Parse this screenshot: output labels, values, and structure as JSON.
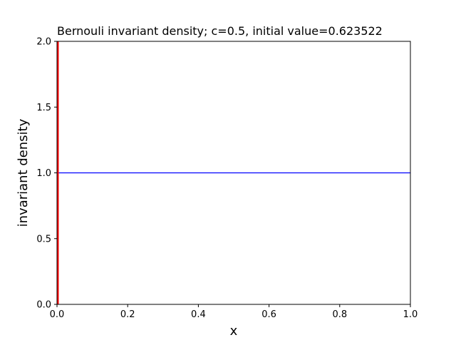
{
  "chart_data": {
    "type": "line",
    "title": "Bernouli invariant density; c=0.5, initial value=0.623522",
    "xlabel": "x",
    "ylabel": "invariant density",
    "xlim": [
      0.0,
      1.0
    ],
    "ylim": [
      0.0,
      2.0
    ],
    "x_ticks": [
      0.0,
      0.2,
      0.4,
      0.6,
      0.8,
      1.0
    ],
    "x_tick_labels": [
      "0.0",
      "0.2",
      "0.4",
      "0.6",
      "0.8",
      "1.0"
    ],
    "y_ticks": [
      0.0,
      0.5,
      1.0,
      1.5,
      2.0
    ],
    "y_tick_labels": [
      "0.0",
      "0.5",
      "1.0",
      "1.5",
      "2.0"
    ],
    "grid": false,
    "series": [
      {
        "color": "#0000ff",
        "style": "line",
        "x": [
          0.0,
          1.0
        ],
        "y": [
          1.0,
          1.0
        ]
      },
      {
        "color": "#ff0000",
        "style": "histogram",
        "bins": [
          {
            "x0": 0.0,
            "x1": 0.005,
            "y": 2.0
          }
        ]
      }
    ]
  }
}
